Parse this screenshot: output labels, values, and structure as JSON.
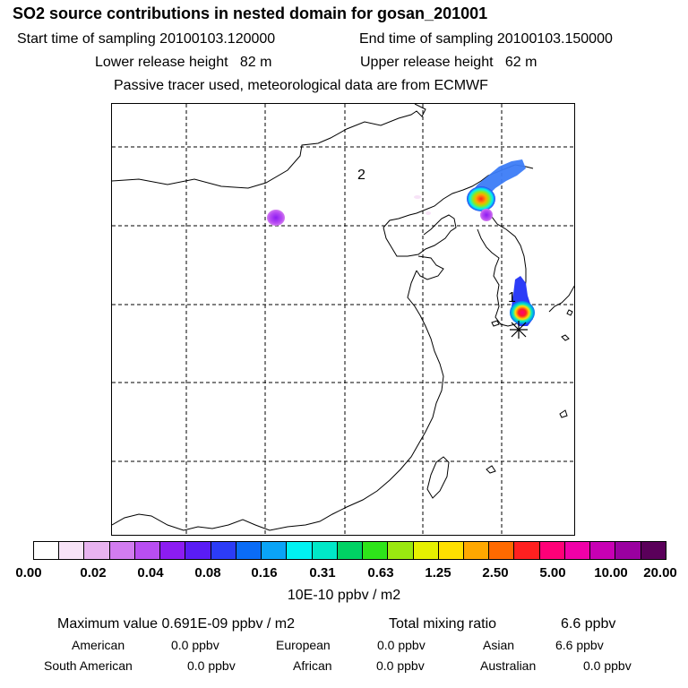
{
  "header": {
    "title": "SO2 source contributions in nested domain for gosan_201001",
    "start_label": "Start time of sampling 20100103.120000",
    "end_label": "End time of sampling 20100103.150000",
    "lower_release": "Lower release height   82 m",
    "upper_release": "Upper release height   62 m",
    "tracer_note": "Passive tracer used, meteorological data are from ECMWF"
  },
  "map": {
    "labels": [
      "2",
      "1"
    ],
    "release_site_marker": "asterisk-marker"
  },
  "colorbar": {
    "colors": [
      "#ffffff",
      "#f7e3f7",
      "#e8b3f0",
      "#d27cf0",
      "#b94ef2",
      "#8c1cf2",
      "#5a1cf5",
      "#2c3cf7",
      "#0a6cf7",
      "#0aa4f7",
      "#00f2f2",
      "#00e8c8",
      "#00d264",
      "#2ee41a",
      "#9ae810",
      "#e6f000",
      "#ffe000",
      "#ffa800",
      "#ff6a00",
      "#ff2020",
      "#ff0078",
      "#f000a8",
      "#c800b4",
      "#9a00a0",
      "#5a005a"
    ],
    "tick_labels": [
      "0.00",
      "0.02",
      "0.04",
      "0.08",
      "0.16",
      "0.31",
      "0.63",
      "1.25",
      "2.50",
      "5.00",
      "10.00",
      "20.00"
    ],
    "unit": "10E-10 ppbv / m2"
  },
  "stats": {
    "max_label": "Maximum value  0.691E-09 ppbv / m2",
    "total_label": "Total mixing ratio",
    "total_value": "6.6 ppbv",
    "regions": [
      {
        "name": "American",
        "value": "0.0 ppbv"
      },
      {
        "name": "European",
        "value": "0.0 ppbv"
      },
      {
        "name": "Asian",
        "value": "6.6 ppbv"
      },
      {
        "name": "South American",
        "value": "0.0 ppbv"
      },
      {
        "name": "African",
        "value": "0.0 ppbv"
      },
      {
        "name": "Australian",
        "value": "0.0 ppbv"
      }
    ]
  }
}
